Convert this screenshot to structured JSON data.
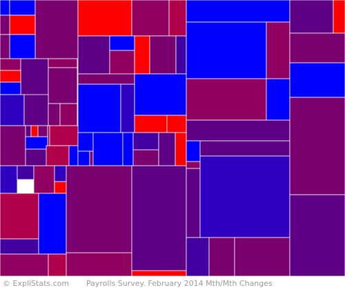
{
  "footer": {
    "credit": "© ExpliStats.com",
    "caption": "Payrolls Survey. February 2014 Mth/Mth Changes"
  },
  "colors": {
    "background": "#ffffff",
    "border": "#ffffff",
    "footer_text": "#999999",
    "palette": {
      "red": "#ff0000",
      "blue": "#0000ff",
      "crimson": "#b0004c",
      "magenta": "#900060",
      "plum": "#7a0070",
      "violet": "#5e0085",
      "purple": "#4200a0",
      "indigo": "#3000c0"
    }
  },
  "chart_data": {
    "type": "treemap",
    "title": "",
    "tiles": [
      {
        "color": "blue"
      },
      {
        "color": "blue"
      },
      {
        "color": "plum"
      },
      {
        "color": "red"
      },
      {
        "color": "plum"
      },
      {
        "color": "blue"
      },
      {
        "color": "plum"
      },
      {
        "color": "magenta"
      },
      {
        "color": "violet"
      },
      {
        "color": "red"
      },
      {
        "color": "blue"
      },
      {
        "color": "magenta"
      },
      {
        "color": "plum"
      },
      {
        "color": "indigo"
      },
      {
        "color": "violet"
      },
      {
        "color": "plum"
      },
      {
        "color": "magenta"
      },
      {
        "color": "red"
      },
      {
        "color": "magenta"
      },
      {
        "color": "crimson"
      },
      {
        "color": "violet"
      },
      {
        "color": "blue"
      },
      {
        "color": "magenta"
      },
      {
        "color": "red"
      },
      {
        "color": "plum"
      },
      {
        "color": "purple"
      },
      {
        "color": "plum"
      },
      {
        "color": "blue"
      },
      {
        "color": "indigo"
      },
      {
        "color": "blue"
      },
      {
        "color": "red"
      },
      {
        "color": "red"
      },
      {
        "color": "plum"
      },
      {
        "color": "violet"
      },
      {
        "color": "red"
      },
      {
        "color": "plum"
      },
      {
        "color": "magenta"
      },
      {
        "color": "crimson"
      },
      {
        "color": "blue"
      },
      {
        "color": "violet"
      },
      {
        "color": "crimson"
      },
      {
        "color": "blue"
      },
      {
        "color": "blue"
      },
      {
        "color": "blue"
      },
      {
        "color": "plum"
      },
      {
        "color": "blue"
      },
      {
        "color": "blue"
      },
      {
        "color": "purple"
      },
      {
        "color": "plum"
      },
      {
        "color": "violet"
      },
      {
        "color": "red"
      },
      {
        "color": "indigo"
      },
      {
        "color": "purple"
      },
      {
        "color": "magenta"
      },
      {
        "color": "indigo"
      },
      {
        "color": "red"
      },
      {
        "color": "crimson"
      },
      {
        "color": "purple"
      },
      {
        "color": "blue"
      },
      {
        "color": "magenta"
      },
      {
        "color": "crimson"
      },
      {
        "color": "magenta"
      },
      {
        "color": "plum"
      },
      {
        "color": "violet"
      },
      {
        "color": "red"
      },
      {
        "color": "blue"
      },
      {
        "color": "blue"
      },
      {
        "color": "magenta"
      },
      {
        "color": "magenta"
      },
      {
        "color": "blue"
      },
      {
        "color": "violet"
      },
      {
        "color": "blue"
      },
      {
        "color": "violet"
      },
      {
        "color": "magenta"
      },
      {
        "color": "violet"
      },
      {
        "color": "indigo"
      },
      {
        "color": "purple"
      },
      {
        "color": "plum"
      },
      {
        "color": "plum"
      },
      {
        "color": "violet"
      },
      {
        "color": "red"
      },
      {
        "color": "plum"
      },
      {
        "color": "blue"
      },
      {
        "color": "plum"
      },
      {
        "color": "violet"
      },
      {
        "color": "violet"
      },
      {
        "color": "plum"
      }
    ]
  }
}
